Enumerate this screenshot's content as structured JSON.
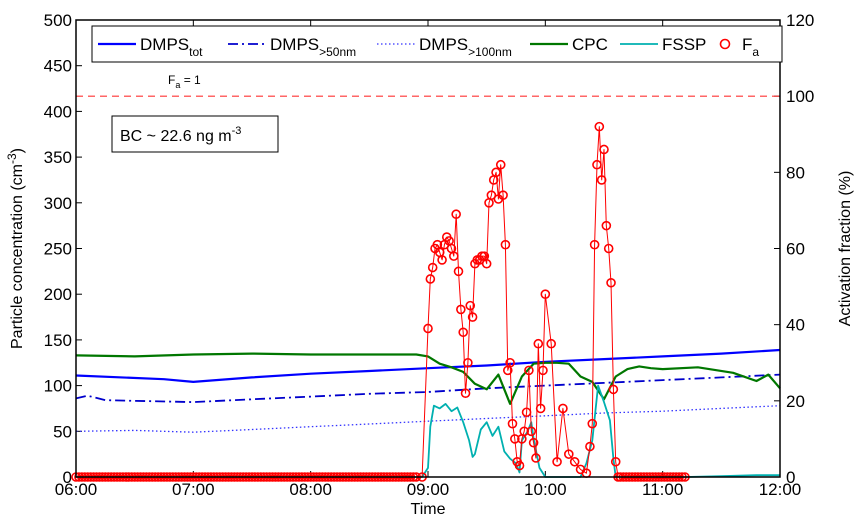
{
  "chart_data": {
    "type": "line",
    "xlabel": "Time",
    "ylabel": "Particle concentration (cm",
    "ylabel_sup": "-3",
    "ylabel_close": ")",
    "y2label": "Activation fraction (%)",
    "xlim": [
      6,
      12
    ],
    "ylim": [
      0,
      500
    ],
    "y2lim": [
      0,
      120
    ],
    "x_ticks": [
      {
        "value": 6,
        "label": "06:00"
      },
      {
        "value": 7,
        "label": "07:00"
      },
      {
        "value": 8,
        "label": "08:00"
      },
      {
        "value": 9,
        "label": "09:00"
      },
      {
        "value": 10,
        "label": "10:00"
      },
      {
        "value": 11,
        "label": "11:00"
      },
      {
        "value": 12,
        "label": "12:00"
      }
    ],
    "y_ticks": [
      0,
      50,
      100,
      150,
      200,
      250,
      300,
      350,
      400,
      450,
      500
    ],
    "y2_ticks": [
      0,
      20,
      40,
      60,
      80,
      100,
      120
    ],
    "legend": {
      "placement": "top",
      "entries": [
        {
          "base": "DMPS",
          "sub": "tot"
        },
        {
          "base": "DMPS",
          "sub": ">50nm"
        },
        {
          "base": "DMPS",
          "sub": ">100nm"
        },
        {
          "base": "CPC",
          "sub": ""
        },
        {
          "base": "FSSP",
          "sub": ""
        },
        {
          "base": "F",
          "sub": "a"
        }
      ]
    },
    "annotations": {
      "reference_line": {
        "axis": "y2",
        "value": 100,
        "label_base": "F",
        "label_sub": "a",
        "label_rest": " = 1"
      },
      "bc_box": {
        "text": "BC ~ 22.6 ng m",
        "sup": "-3"
      }
    },
    "colors": {
      "dmps_tot": "#0000ff",
      "dmps_50": "#0000cc",
      "dmps_100": "#3333ff",
      "cpc": "#007700",
      "fssp": "#00b0b0",
      "fa": "#ff0000",
      "ref_line": "#ff3333"
    },
    "series": [
      {
        "name": "DMPS_tot",
        "axis": "y",
        "style": "solid",
        "x": [
          6.0,
          6.75,
          7.0,
          7.5,
          8.0,
          8.5,
          9.0,
          9.5,
          10.0,
          10.5,
          11.0,
          11.5,
          12.0
        ],
        "y": [
          111,
          107,
          104,
          109,
          113,
          116,
          119,
          122,
          126,
          129,
          132,
          135,
          139
        ]
      },
      {
        "name": "DMPS_>50nm",
        "axis": "y",
        "style": "dashdot",
        "x": [
          6.0,
          6.1,
          6.25,
          7.0,
          7.5,
          8.0,
          8.5,
          9.0,
          9.5,
          10.0,
          10.5,
          11.0,
          11.5,
          12.0
        ],
        "y": [
          86,
          89,
          84,
          82,
          85,
          88,
          91,
          93,
          97,
          100,
          103,
          106,
          109,
          112
        ]
      },
      {
        "name": "DMPS_>100nm",
        "axis": "y",
        "style": "dotted",
        "x": [
          6.0,
          6.5,
          7.0,
          7.5,
          8.0,
          8.5,
          9.0,
          9.5,
          10.0,
          10.5,
          11.0,
          11.5,
          12.0
        ],
        "y": [
          50,
          51,
          49,
          52,
          55,
          58,
          61,
          64,
          67,
          70,
          72,
          75,
          78
        ]
      },
      {
        "name": "CPC",
        "axis": "y",
        "style": "solid",
        "x": [
          6.0,
          6.5,
          7.0,
          7.5,
          8.0,
          8.5,
          8.9,
          9.0,
          9.1,
          9.2,
          9.3,
          9.4,
          9.5,
          9.6,
          9.7,
          9.8,
          9.9,
          10.0,
          10.1,
          10.2,
          10.3,
          10.4,
          10.5,
          10.6,
          10.7,
          10.8,
          10.9,
          11.0,
          11.3,
          11.6,
          11.8,
          11.9,
          12.0
        ],
        "y": [
          133,
          132,
          134,
          135,
          134,
          134,
          134,
          132,
          124,
          120,
          115,
          102,
          96,
          112,
          80,
          110,
          124,
          125,
          125,
          124,
          110,
          104,
          85,
          110,
          118,
          121,
          119,
          118,
          120,
          114,
          105,
          112,
          97
        ]
      },
      {
        "name": "FSSP",
        "axis": "y",
        "style": "solid",
        "x": [
          6.0,
          8.95,
          9.0,
          9.02,
          9.05,
          9.1,
          9.15,
          9.2,
          9.25,
          9.3,
          9.35,
          9.38,
          9.4,
          9.45,
          9.5,
          9.55,
          9.6,
          9.65,
          9.7,
          9.75,
          9.78,
          9.8,
          9.85,
          9.88,
          9.9,
          9.95,
          10.0,
          10.2,
          10.3,
          10.35,
          10.4,
          10.45,
          10.5,
          10.55,
          10.58,
          10.6,
          11.2,
          11.5,
          11.8,
          12.0
        ],
        "y": [
          0,
          0,
          10,
          55,
          78,
          75,
          80,
          72,
          76,
          60,
          40,
          22,
          25,
          52,
          60,
          45,
          55,
          28,
          20,
          15,
          5,
          40,
          50,
          60,
          42,
          10,
          0,
          0,
          0,
          15,
          40,
          100,
          82,
          62,
          20,
          0,
          0,
          1,
          2,
          2
        ]
      },
      {
        "name": "F_a",
        "axis": "y2",
        "style": "line-markers",
        "x": [
          8.95,
          9.0,
          9.02,
          9.04,
          9.06,
          9.08,
          9.1,
          9.12,
          9.14,
          9.16,
          9.18,
          9.2,
          9.22,
          9.24,
          9.26,
          9.28,
          9.3,
          9.32,
          9.34,
          9.36,
          9.38,
          9.4,
          9.42,
          9.44,
          9.46,
          9.48,
          9.5,
          9.52,
          9.54,
          9.56,
          9.58,
          9.6,
          9.62,
          9.64,
          9.66,
          9.68,
          9.7,
          9.72,
          9.74,
          9.76,
          9.78,
          9.8,
          9.82,
          9.84,
          9.86,
          9.88,
          9.9,
          9.92,
          9.94,
          9.96,
          9.98,
          10.0,
          10.05,
          10.1,
          10.15,
          10.2,
          10.25,
          10.3,
          10.35,
          10.38,
          10.4,
          10.42,
          10.44,
          10.46,
          10.48,
          10.5,
          10.52,
          10.54,
          10.56,
          10.58,
          10.6,
          10.62
        ],
        "y": [
          0,
          39,
          52,
          55,
          60,
          61,
          59,
          57,
          61,
          63,
          62,
          60,
          58,
          69,
          54,
          44,
          38,
          22,
          30,
          45,
          42,
          56,
          57,
          57,
          58,
          58,
          56,
          72,
          74,
          78,
          80,
          73,
          82,
          74,
          61,
          28,
          30,
          14,
          10,
          4,
          3,
          10,
          12,
          17,
          28,
          12,
          9,
          5,
          35,
          18,
          28,
          48,
          35,
          4,
          18,
          6,
          4,
          2,
          1,
          8,
          14,
          61,
          82,
          92,
          78,
          86,
          66,
          60,
          51,
          23,
          4,
          0
        ]
      }
    ]
  }
}
